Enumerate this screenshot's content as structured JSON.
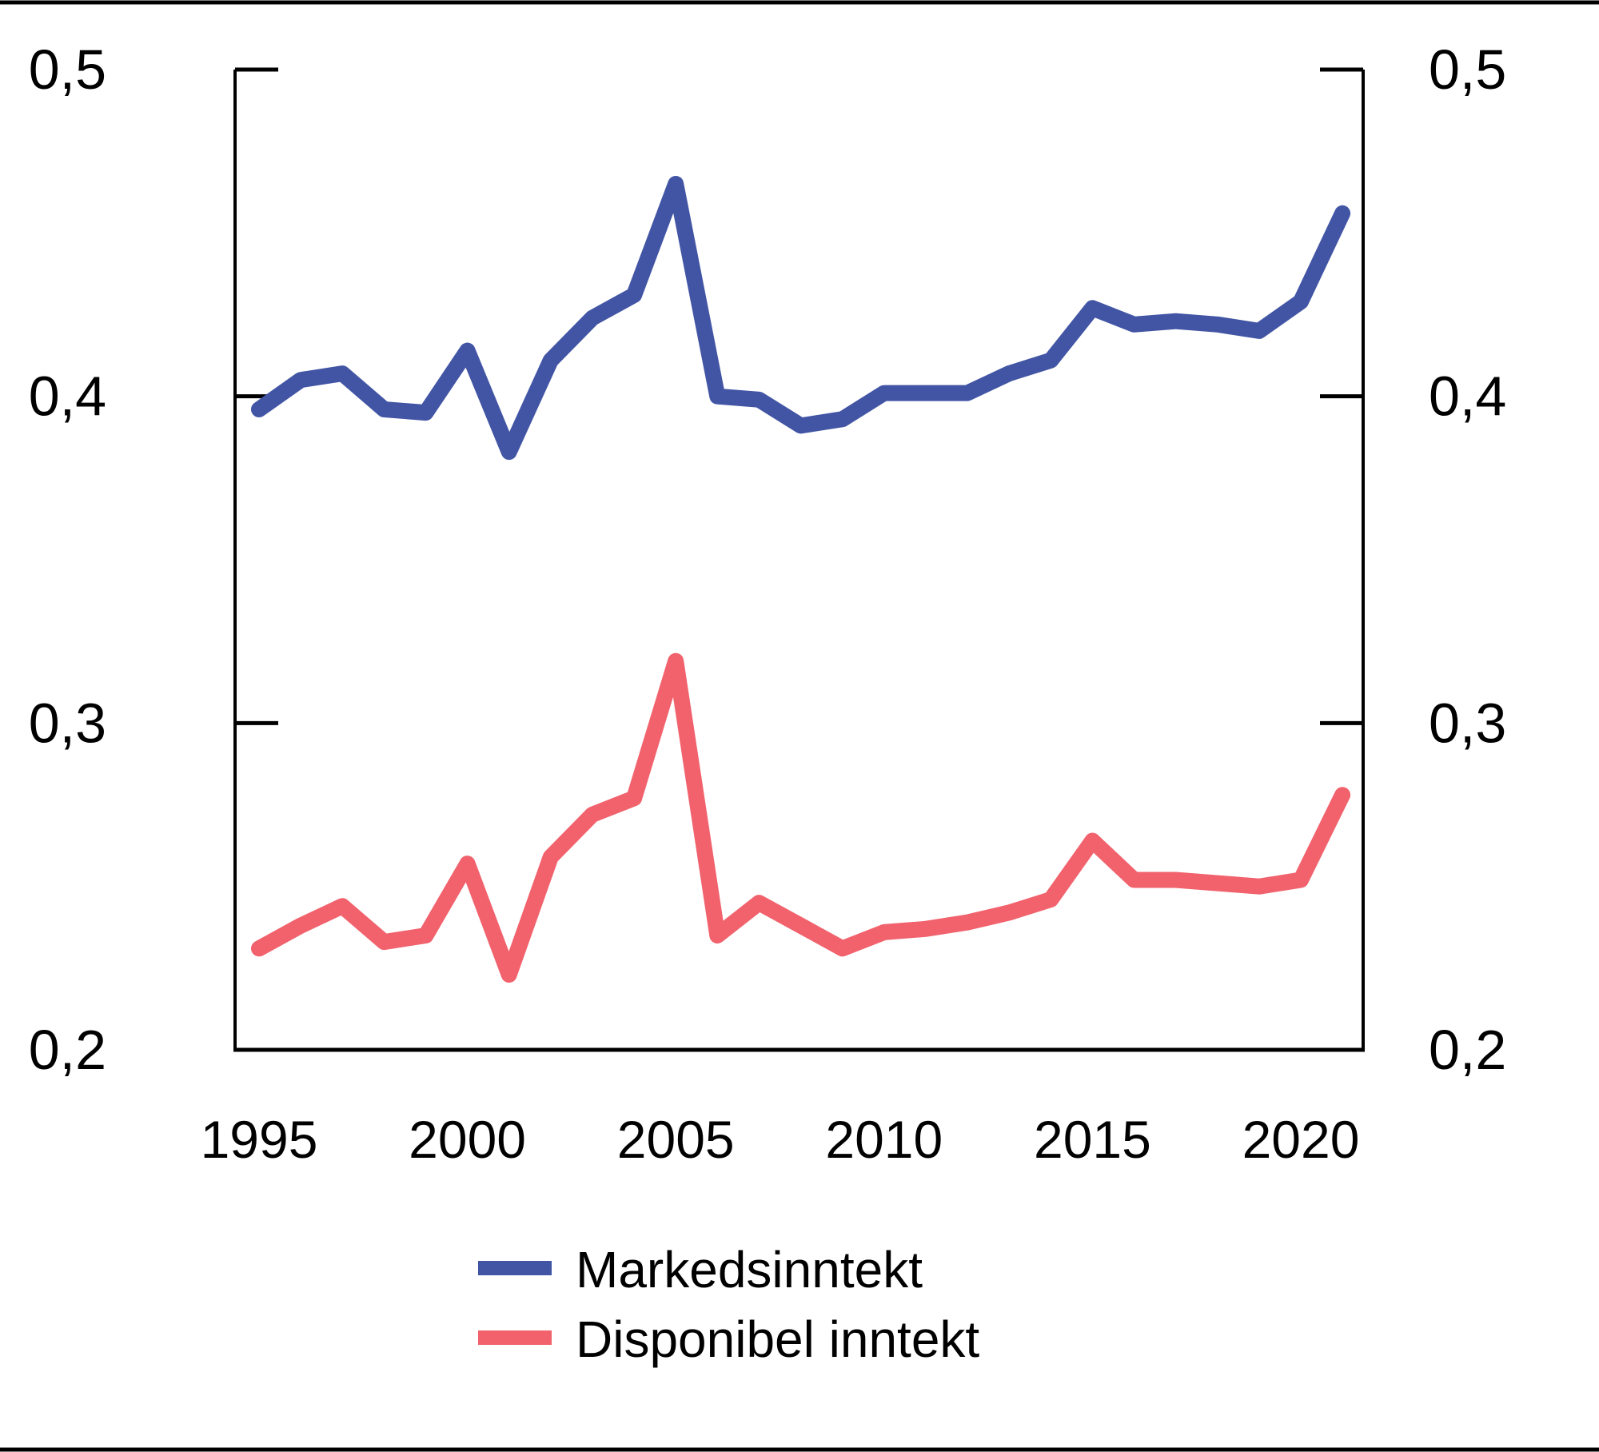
{
  "chart_data": {
    "type": "line",
    "x": [
      1995,
      1996,
      1997,
      1998,
      1999,
      2000,
      2001,
      2002,
      2003,
      2004,
      2005,
      2006,
      2007,
      2008,
      2009,
      2010,
      2011,
      2012,
      2013,
      2014,
      2015,
      2016,
      2017,
      2018,
      2019,
      2020,
      2021
    ],
    "series": [
      {
        "name": "Markedsinntekt",
        "color": "#4255A4",
        "values": [
          0.396,
          0.405,
          0.407,
          0.396,
          0.395,
          0.414,
          0.383,
          0.411,
          0.424,
          0.431,
          0.465,
          0.4,
          0.399,
          0.391,
          0.393,
          0.401,
          0.401,
          0.401,
          0.407,
          0.411,
          0.427,
          0.422,
          0.423,
          0.422,
          0.42,
          0.429,
          0.456
        ]
      },
      {
        "name": "Disponibel inntekt",
        "color": "#F1626D",
        "values": [
          0.231,
          0.238,
          0.244,
          0.233,
          0.235,
          0.257,
          0.223,
          0.259,
          0.272,
          0.277,
          0.319,
          0.235,
          0.245,
          0.238,
          0.231,
          0.236,
          0.237,
          0.239,
          0.242,
          0.246,
          0.264,
          0.252,
          0.252,
          0.251,
          0.25,
          0.252,
          0.278
        ]
      }
    ],
    "title": "",
    "xlabel": "",
    "ylabel": "",
    "ylim": [
      0.2,
      0.5
    ],
    "xlim": [
      1994.4,
      2022.5
    ],
    "grid": false,
    "y_axis_sides": "both",
    "decimal_separator": ",",
    "legend_position": "bottom-left",
    "yticks": {
      "values": [
        0.5,
        0.4,
        0.3,
        0.2
      ],
      "labels": [
        "0,5",
        "0,4",
        "0,3",
        "0,2"
      ]
    },
    "xticks": {
      "values": [
        1995,
        2000,
        2005,
        2010,
        2015,
        2020
      ],
      "labels": [
        "1995",
        "2000",
        "2005",
        "2010",
        "2015",
        "2020"
      ]
    }
  }
}
